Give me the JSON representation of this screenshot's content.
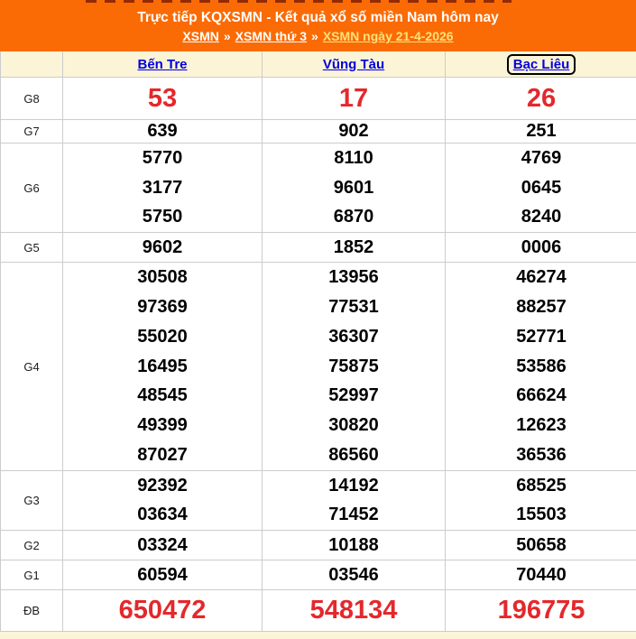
{
  "header": {
    "title": "Trực tiếp KQXSMN - Kết quả xổ số miền Nam hôm nay",
    "separator": "»",
    "breadcrumb": [
      {
        "label": "XSMN"
      },
      {
        "label": "XSMN thứ 3"
      },
      {
        "label": "XSMN ngày 21-4-2026"
      }
    ]
  },
  "table": {
    "provinces": [
      {
        "name": "Bến Tre",
        "focused": false
      },
      {
        "name": "Vũng Tàu",
        "focused": false
      },
      {
        "name": "Bạc Liêu",
        "focused": true
      }
    ],
    "rows": [
      {
        "key": "g8",
        "label": "G8",
        "emphasis": true,
        "values": [
          [
            "53"
          ],
          [
            "17"
          ],
          [
            "26"
          ]
        ]
      },
      {
        "key": "g7",
        "label": "G7",
        "emphasis": false,
        "values": [
          [
            "639"
          ],
          [
            "902"
          ],
          [
            "251"
          ]
        ]
      },
      {
        "key": "g6",
        "label": "G6",
        "emphasis": false,
        "values": [
          [
            "5770",
            "3177",
            "5750"
          ],
          [
            "8110",
            "9601",
            "6870"
          ],
          [
            "4769",
            "0645",
            "8240"
          ]
        ]
      },
      {
        "key": "g5",
        "label": "G5",
        "emphasis": false,
        "values": [
          [
            "9602"
          ],
          [
            "1852"
          ],
          [
            "0006"
          ]
        ]
      },
      {
        "key": "g4",
        "label": "G4",
        "emphasis": false,
        "values": [
          [
            "30508",
            "97369",
            "55020",
            "16495",
            "48545",
            "49399",
            "87027"
          ],
          [
            "13956",
            "77531",
            "36307",
            "75875",
            "52997",
            "30820",
            "86560"
          ],
          [
            "46274",
            "88257",
            "52771",
            "53586",
            "66624",
            "12623",
            "36536"
          ]
        ]
      },
      {
        "key": "g3",
        "label": "G3",
        "emphasis": false,
        "values": [
          [
            "92392",
            "03634"
          ],
          [
            "14192",
            "71452"
          ],
          [
            "68525",
            "15503"
          ]
        ]
      },
      {
        "key": "g2",
        "label": "G2",
        "emphasis": false,
        "values": [
          [
            "03324"
          ],
          [
            "10188"
          ],
          [
            "50658"
          ]
        ]
      },
      {
        "key": "g1",
        "label": "G1",
        "emphasis": false,
        "values": [
          [
            "60594"
          ],
          [
            "03546"
          ],
          [
            "70440"
          ]
        ]
      },
      {
        "key": "db",
        "label": "ĐB",
        "emphasis": true,
        "values": [
          [
            "650472"
          ],
          [
            "548134"
          ],
          [
            "196775"
          ]
        ]
      }
    ]
  },
  "colors": {
    "accent": "#fa6b05",
    "cream": "#fcf4d6",
    "red": "#e4282c",
    "link_blue": "#0000dd",
    "border": "#cccccc",
    "header_text": "#ffffff",
    "breadcrumb_last": "#ffe27a",
    "number": "#000000"
  }
}
